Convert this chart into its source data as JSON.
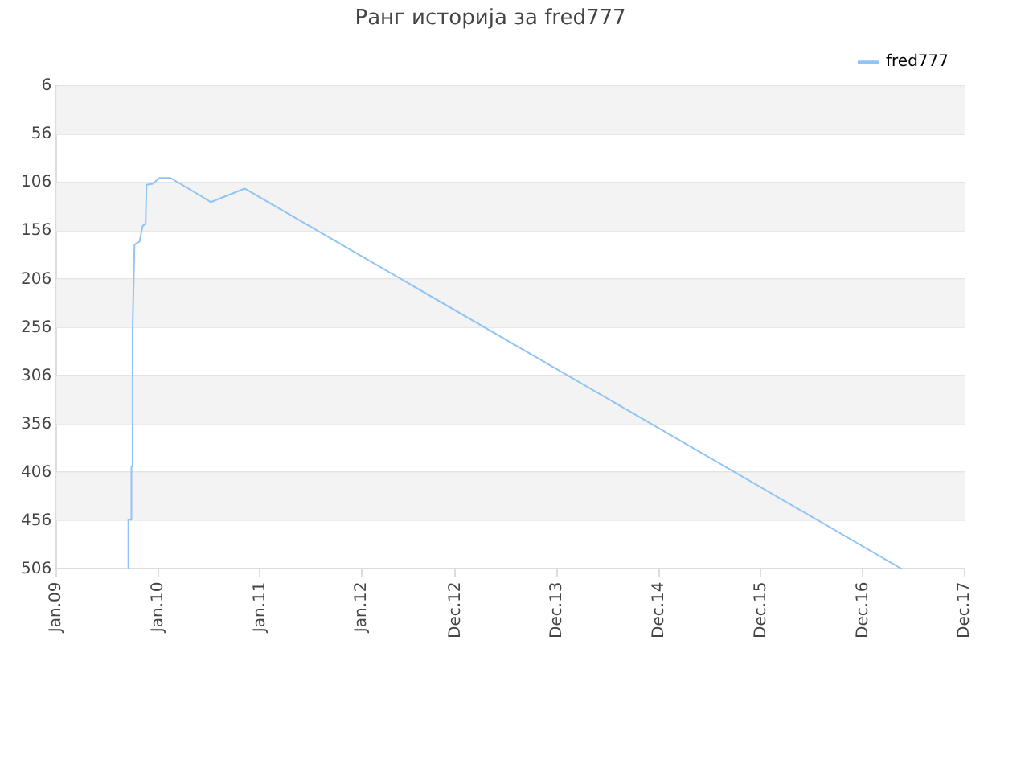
{
  "chart_data": {
    "type": "line",
    "title": "Ранг историја за fred777",
    "x": [
      "2009-09-16",
      "2009-09-16",
      "2009-09-27",
      "2009-09-27",
      "2009-10-01",
      "2009-10-01",
      "2009-10-08",
      "2009-10-26",
      "2009-11-06",
      "2009-11-17",
      "2009-11-20",
      "2009-12-13",
      "2010-01-05",
      "2010-02-14",
      "2010-07-09",
      "2010-11-07",
      "2017-04-20"
    ],
    "series": [
      {
        "name": "fred777",
        "color": "#90c4f4",
        "values": [
          506,
          455,
          455,
          400,
          400,
          258,
          170,
          167,
          151,
          148,
          108,
          107,
          101,
          101,
          126,
          112,
          506
        ]
      }
    ],
    "xlim": [
      "2009-01-01",
      "2017-12-01"
    ],
    "xticks": [
      {
        "value": "2009-01-01",
        "label": "Jan.09"
      },
      {
        "value": "2010-01-01",
        "label": "Jan.10"
      },
      {
        "value": "2011-01-01",
        "label": "Jan.11"
      },
      {
        "value": "2012-01-01",
        "label": "Jan.12"
      },
      {
        "value": "2012-12-01",
        "label": "Dec.12"
      },
      {
        "value": "2013-12-01",
        "label": "Dec.13"
      },
      {
        "value": "2014-12-01",
        "label": "Dec.14"
      },
      {
        "value": "2015-12-01",
        "label": "Dec.15"
      },
      {
        "value": "2016-12-01",
        "label": "Dec.16"
      },
      {
        "value": "2017-12-01",
        "label": "Dec.17"
      }
    ],
    "ylim": [
      506,
      6
    ],
    "yticks": [
      6,
      56,
      106,
      156,
      206,
      256,
      306,
      356,
      406,
      456,
      506
    ],
    "grid": "y",
    "legend": "top right",
    "marker": "none",
    "line_style": "solid"
  }
}
